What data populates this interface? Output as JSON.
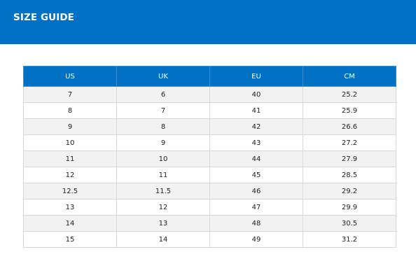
{
  "header": {
    "title": "SIZE GUIDE"
  },
  "table": {
    "columns": [
      "US",
      "UK",
      "EU",
      "CM"
    ],
    "rows": [
      [
        "7",
        "6",
        "40",
        "25.2"
      ],
      [
        "8",
        "7",
        "41",
        "25.9"
      ],
      [
        "9",
        "8",
        "42",
        "26.6"
      ],
      [
        "10",
        "9",
        "43",
        "27.2"
      ],
      [
        "11",
        "10",
        "44",
        "27.9"
      ],
      [
        "12",
        "11",
        "45",
        "28.5"
      ],
      [
        "12.5",
        "11.5",
        "46",
        "29.2"
      ],
      [
        "13",
        "12",
        "47",
        "29.9"
      ],
      [
        "14",
        "13",
        "48",
        "30.5"
      ],
      [
        "15",
        "14",
        "49",
        "31.2"
      ]
    ]
  },
  "colors": {
    "brand_blue": "#0071c5",
    "row_stripe": "#f2f2f2",
    "border": "#d9d9d9"
  }
}
